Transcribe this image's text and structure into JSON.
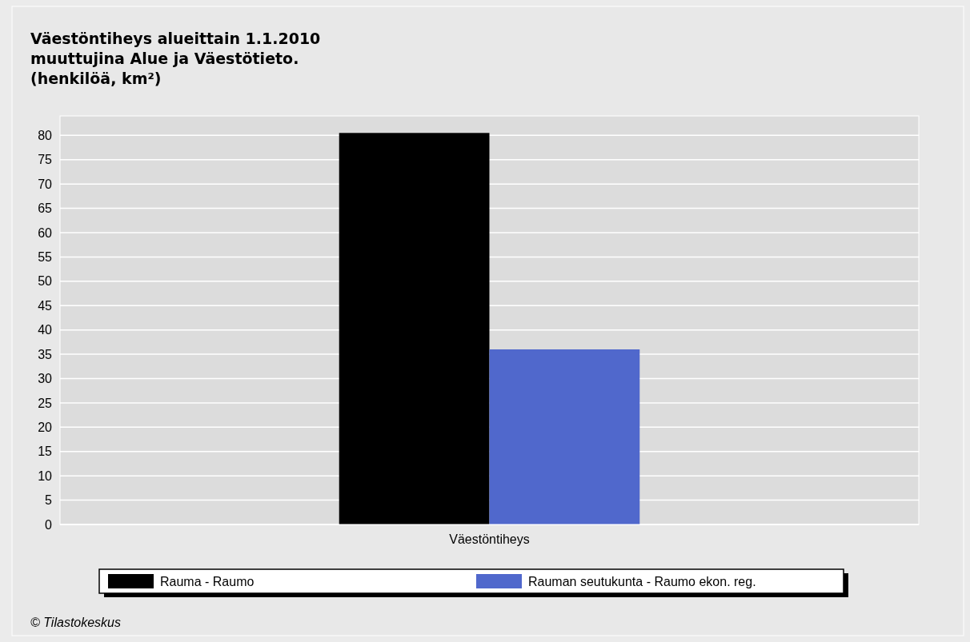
{
  "chart_data": {
    "type": "bar",
    "title": "Väestöntiheys alueittain 1.1.2010\nmuuttujina Alue ja Väestötieto.\n(henkilöä, km²)",
    "categories": [
      "Väestöntiheys"
    ],
    "series": [
      {
        "name": "Rauma - Raumo",
        "color": "#000000",
        "values": [
          80.5
        ]
      },
      {
        "name": "Rauman seutukunta - Raumo ekon. reg.",
        "color": "#5068cc",
        "values": [
          36.0
        ]
      }
    ],
    "ylim": [
      0,
      84
    ],
    "yticks": [
      0,
      5,
      10,
      15,
      20,
      25,
      30,
      35,
      40,
      45,
      50,
      55,
      60,
      65,
      70,
      75,
      80
    ],
    "grid": "y",
    "legend": "bottom",
    "annotations": [
      "© Tilastokeskus"
    ]
  }
}
